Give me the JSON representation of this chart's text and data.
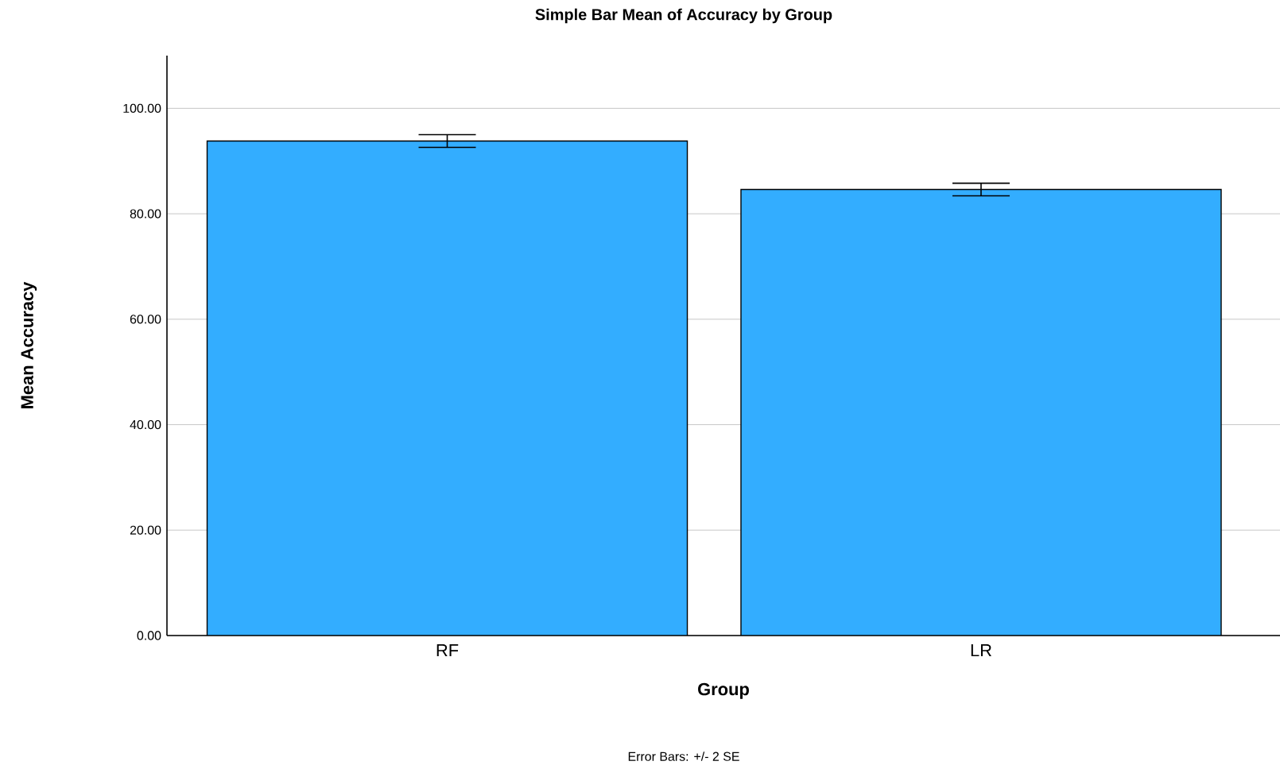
{
  "chart_data": {
    "type": "bar",
    "title": "Simple Bar Mean of Accuracy by Group",
    "xlabel": "Group",
    "ylabel": "Mean Accuracy",
    "categories": [
      "RF",
      "LR"
    ],
    "values": [
      93.8,
      84.6
    ],
    "errors": [
      1.2,
      1.2
    ],
    "color": "#33adff",
    "ylim": [
      0,
      110
    ],
    "yticks": [
      {
        "value": 0,
        "label": "0.00"
      },
      {
        "value": 20,
        "label": "20.00"
      },
      {
        "value": 40,
        "label": "40.00"
      },
      {
        "value": 60,
        "label": "60.00"
      },
      {
        "value": 80,
        "label": "80.00"
      },
      {
        "value": 100,
        "label": "100.00"
      }
    ],
    "grid": "y",
    "annotations": [
      "Error Bars: +/- 2 SE"
    ]
  }
}
